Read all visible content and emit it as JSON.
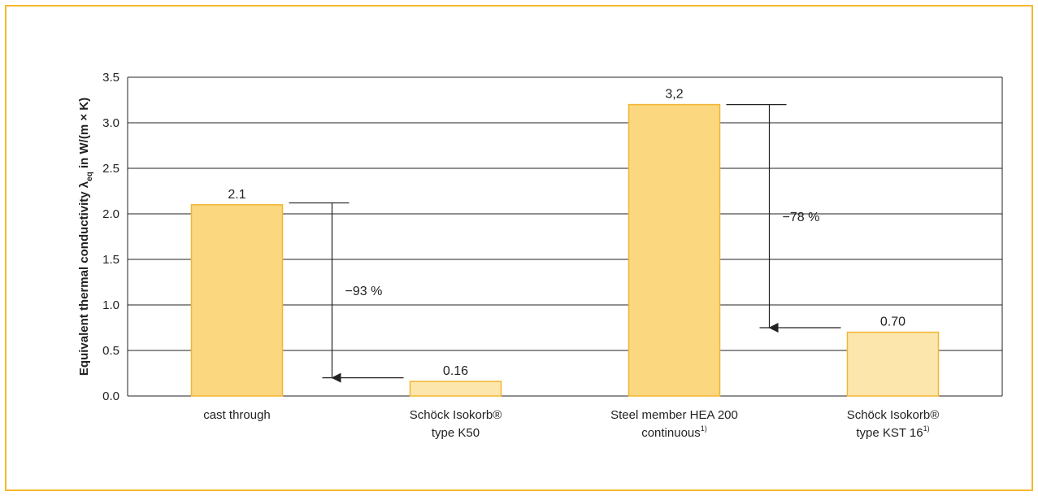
{
  "colors": {
    "frame": "#f6b92d",
    "bar_conventional": "#fbd780",
    "bar_isokorb": "#fde6ac",
    "bar_stroke": "#f3b533",
    "grid": "#222222"
  },
  "chart_data": {
    "type": "bar",
    "ylabel_main": "Equivalent thermal conductivity λ",
    "ylabel_sub": "eq",
    "ylabel_unit": " in W/(m × K)",
    "ylim": [
      0,
      3.5
    ],
    "yticks": [
      "0.0",
      "0.5",
      "1.0",
      "1.5",
      "2.0",
      "2.5",
      "3.0",
      "3.5"
    ],
    "grid": true,
    "categories": [
      {
        "lines": [
          "cast through"
        ],
        "sup": ""
      },
      {
        "lines": [
          "Schöck Isokorb®",
          "type K50"
        ],
        "sup": ""
      },
      {
        "lines": [
          "Steel member HEA 200",
          "continuous"
        ],
        "sup": "1)"
      },
      {
        "lines": [
          "Schöck Isokorb®",
          "type KST 16"
        ],
        "sup": "1)"
      }
    ],
    "values": [
      2.1,
      0.16,
      3.2,
      0.7
    ],
    "value_labels": [
      "2.1",
      "0.16",
      "3,2",
      "0.70"
    ],
    "bar_color_keys": [
      "bar_conventional",
      "bar_isokorb",
      "bar_conventional",
      "bar_isokorb"
    ],
    "annotations": [
      {
        "from_value": 2.12,
        "to_value": 0.2,
        "label": "−93 %"
      },
      {
        "from_value": 3.2,
        "to_value": 0.75,
        "label": "−78 %"
      }
    ]
  }
}
